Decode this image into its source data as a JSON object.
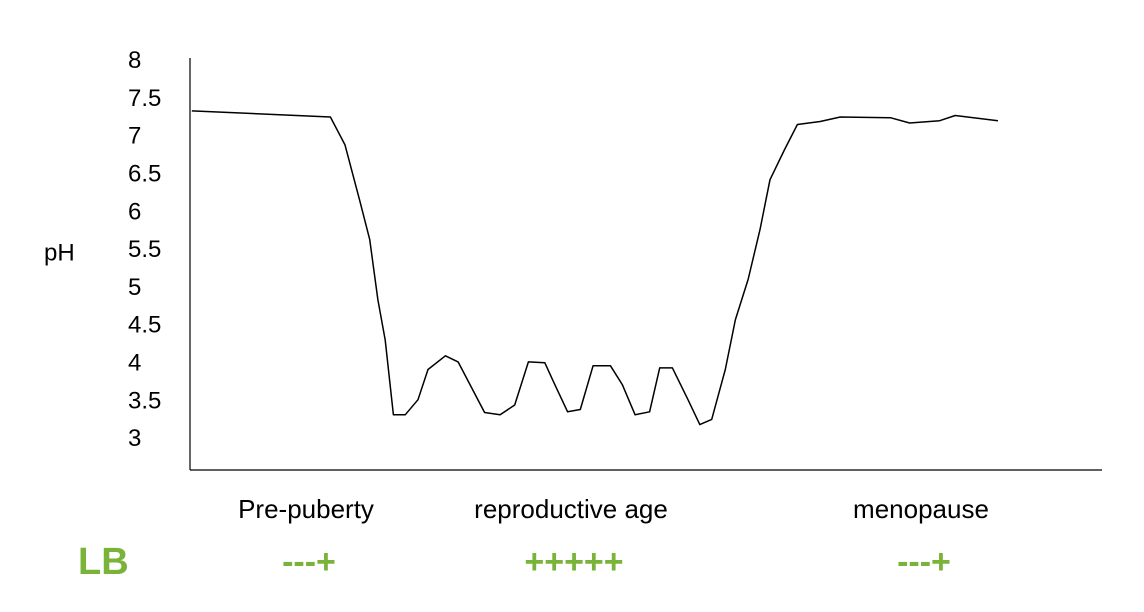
{
  "chart_data": {
    "type": "line",
    "y_label": "pH",
    "x": [
      0.2,
      15.4,
      17.0,
      18.6,
      19.7,
      20.6,
      21.4,
      22.3,
      23.6,
      25.0,
      26.1,
      28.0,
      29.4,
      30.7,
      32.3,
      34.0,
      35.6,
      37.1,
      38.9,
      40.0,
      41.4,
      42.8,
      44.2,
      46.1,
      47.4,
      48.8,
      50.4,
      51.5,
      52.9,
      54.6,
      55.9,
      57.2,
      58.7,
      59.8,
      61.2,
      62.5,
      63.6,
      65.2,
      66.6,
      69.1,
      71.3,
      76.8,
      78.9,
      82.2,
      83.9,
      88.6
    ],
    "values": [
      7.35,
      7.27,
      6.9,
      6.17,
      5.65,
      4.85,
      4.32,
      3.33,
      3.33,
      3.53,
      3.93,
      4.11,
      4.03,
      3.73,
      3.36,
      3.33,
      3.46,
      4.03,
      4.02,
      3.73,
      3.37,
      3.4,
      3.98,
      3.98,
      3.73,
      3.33,
      3.37,
      3.95,
      3.95,
      3.53,
      3.2,
      3.27,
      3.93,
      4.59,
      5.12,
      5.78,
      6.44,
      6.84,
      7.17,
      7.21,
      7.27,
      7.26,
      7.19,
      7.22,
      7.29,
      7.22
    ],
    "color": "#000000",
    "xlim": [
      0,
      100
    ],
    "ylim": [
      2.6,
      8.05
    ],
    "yticks": [
      3,
      3.5,
      4,
      4.5,
      5,
      5.5,
      6,
      6.5,
      7,
      7.5,
      8
    ],
    "grid": false,
    "lb_label": "LB",
    "annotations": [
      {
        "phase": "Pre-puberty",
        "lb": "---+"
      },
      {
        "phase": "reproductive age",
        "lb": "+++++"
      },
      {
        "phase": "menopause",
        "lb": "---+"
      }
    ]
  }
}
